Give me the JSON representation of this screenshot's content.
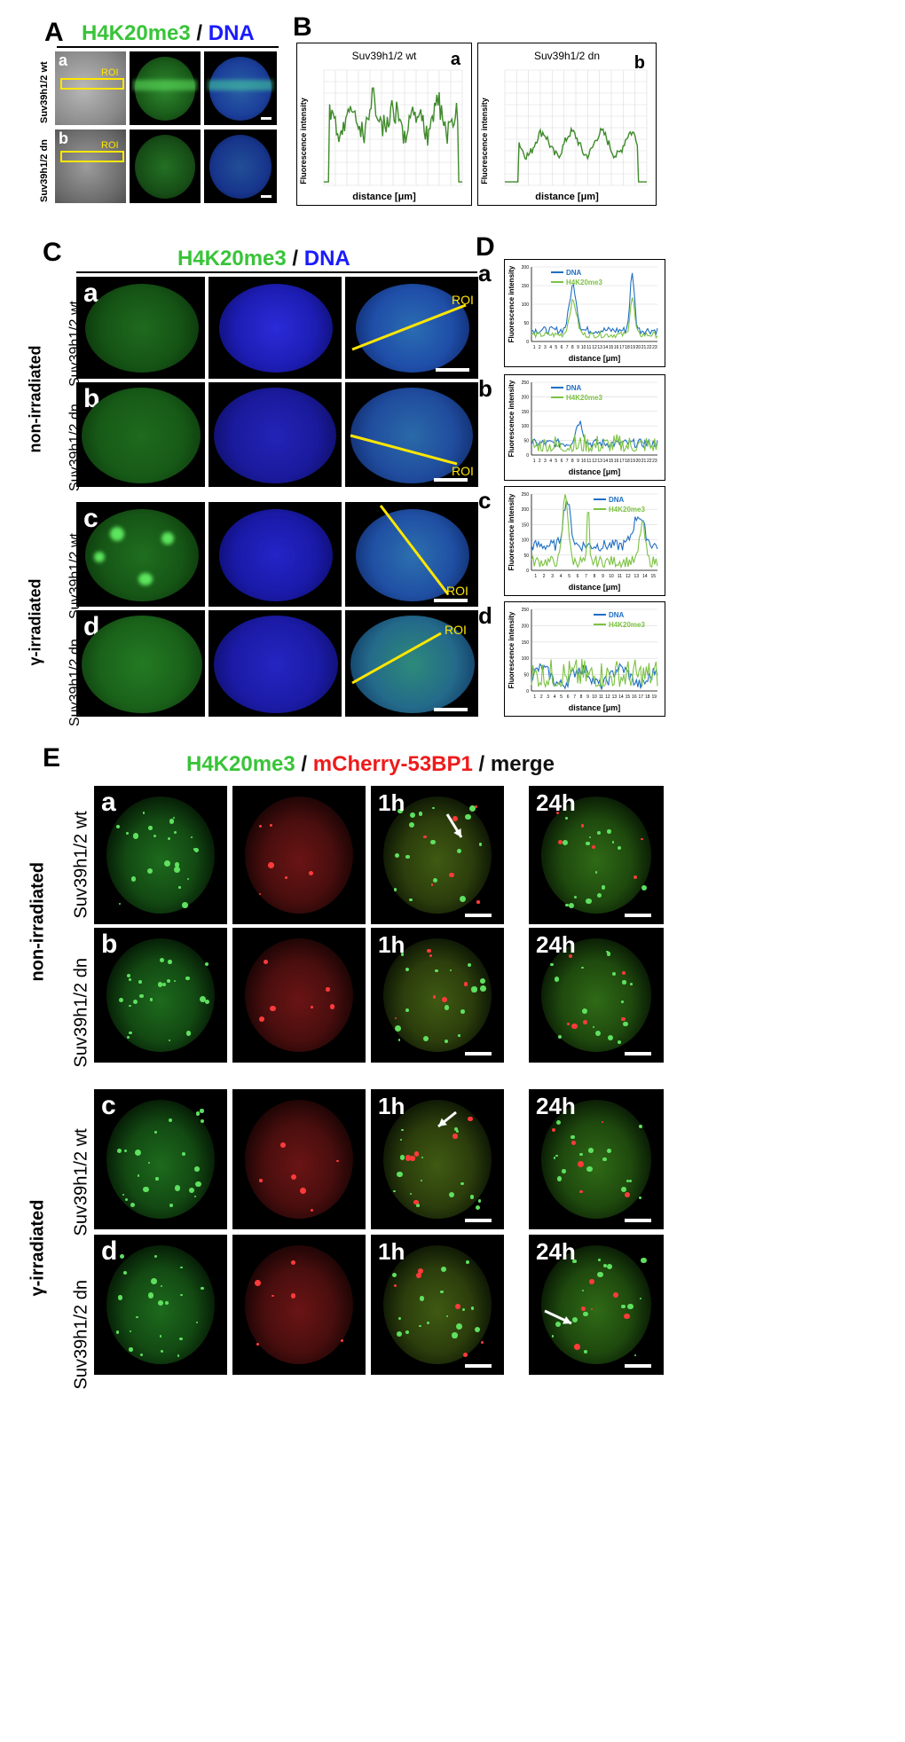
{
  "panelA": {
    "letter": "A",
    "title_green": "H4K20me3",
    "title_sep": " / ",
    "title_blue": "DNA",
    "rows": [
      {
        "sub": "a",
        "label": "Suv39h1/2 wt",
        "roi": "ROI"
      },
      {
        "sub": "b",
        "label": "Suv39h1/2 dn",
        "roi": "ROI"
      }
    ]
  },
  "panelB": {
    "letter": "B",
    "plots": [
      {
        "sub": "a",
        "title": "Suv39h1/2 wt"
      },
      {
        "sub": "b",
        "title": "Suv39h1/2 dn"
      }
    ],
    "ylabel": "Fluorescence intensity",
    "xlabel": "distance [μm]"
  },
  "panelC": {
    "letter": "C",
    "title_green": "H4K20me3",
    "title_sep": " / ",
    "title_blue": "DNA",
    "group_labels": [
      "non-irradiated",
      "γ-irradiated"
    ],
    "rows": [
      {
        "sub": "a",
        "label": "Suv39h1/2 wt",
        "roi": "ROI"
      },
      {
        "sub": "b",
        "label": "Suv39h1/2 dn",
        "roi": "ROI"
      },
      {
        "sub": "c",
        "label": "Suv39h1/2 wt",
        "roi": "ROI"
      },
      {
        "sub": "d",
        "label": "Suv39h1/2 dn",
        "roi": "ROI"
      }
    ]
  },
  "panelD": {
    "letter": "D",
    "ylabel": "Fluorescence intensity",
    "xlabel": "distance [μm]",
    "legend": [
      "DNA",
      "H4K20me3"
    ],
    "colors": {
      "dna": "#1f6fc4",
      "h4": "#7cc242"
    },
    "plots": [
      {
        "sub": "a",
        "yticks": [
          "0",
          "50",
          "100",
          "150",
          "200"
        ],
        "xticks": [
          "1",
          "2",
          "3",
          "4",
          "5",
          "6",
          "7",
          "8",
          "9",
          "10",
          "11",
          "12",
          "13",
          "14",
          "15",
          "16",
          "17",
          "18",
          "19",
          "20",
          "21",
          "22",
          "23"
        ]
      },
      {
        "sub": "b",
        "yticks": [
          "0",
          "50",
          "100",
          "150",
          "200",
          "250"
        ],
        "xticks": [
          "1",
          "2",
          "3",
          "4",
          "5",
          "6",
          "7",
          "8",
          "9",
          "10",
          "11",
          "12",
          "13",
          "14",
          "15",
          "16",
          "17",
          "18",
          "19",
          "20",
          "21",
          "22",
          "23"
        ]
      },
      {
        "sub": "c",
        "yticks": [
          "0",
          "50",
          "100",
          "150",
          "200",
          "250"
        ],
        "xticks": [
          "1",
          "2",
          "3",
          "4",
          "5",
          "6",
          "7",
          "8",
          "9",
          "10",
          "11",
          "12",
          "13",
          "14",
          "15"
        ]
      },
      {
        "sub": "d",
        "yticks": [
          "0",
          "50",
          "100",
          "150",
          "200",
          "250"
        ],
        "xticks": [
          "1",
          "2",
          "3",
          "4",
          "5",
          "6",
          "7",
          "8",
          "9",
          "10",
          "11",
          "12",
          "13",
          "14",
          "15",
          "16",
          "17",
          "18",
          "19"
        ]
      }
    ]
  },
  "panelE": {
    "letter": "E",
    "title_green": "H4K20me3",
    "title_sep1": " / ",
    "title_red": "mCherry-53BP1",
    "title_sep2": " / ",
    "title_black": "merge",
    "group_labels": [
      "non-irradiated",
      "γ-irradiated"
    ],
    "time_1h": "1h",
    "time_24h": "24h",
    "rows": [
      {
        "sub": "a",
        "label": "Suv39h1/2 wt"
      },
      {
        "sub": "b",
        "label": "Suv39h1/2 dn"
      },
      {
        "sub": "c",
        "label": "Suv39h1/2 wt"
      },
      {
        "sub": "d",
        "label": "Suv39h1/2 dn"
      }
    ]
  }
}
